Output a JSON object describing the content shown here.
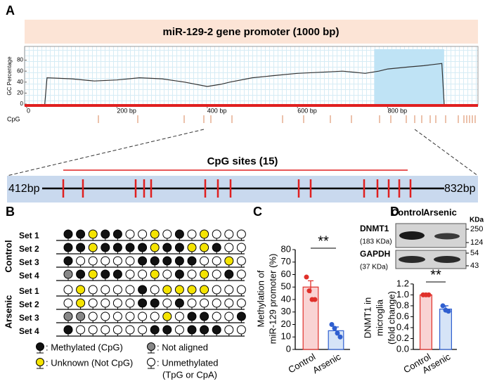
{
  "panel_labels": [
    "A",
    "B",
    "C",
    "D"
  ],
  "chart_data": [
    {
      "type": "line",
      "title": "miR-129-2 gene promoter (1000 bp)",
      "ylabel": "GC Percentage",
      "track_label": "CpG",
      "color": "#333333",
      "shade_color": "#bfe3f5",
      "x": [
        40,
        45,
        100,
        150,
        200,
        250,
        300,
        350,
        400,
        430,
        450,
        500,
        550,
        600,
        650,
        700,
        750,
        780,
        800,
        850,
        880,
        900,
        920,
        925
      ],
      "values": [
        0,
        48,
        46,
        42,
        44,
        48,
        46,
        40,
        32,
        36,
        40,
        48,
        52,
        56,
        58,
        60,
        56,
        60,
        64,
        68,
        70,
        72,
        74,
        0
      ],
      "shaded_region": [
        770,
        925
      ],
      "xlim": [
        0,
        1000
      ],
      "xticks": [
        0,
        {
          "value": 200,
          "label": "200 bp"
        },
        {
          "value": 400,
          "label": "400 bp"
        },
        {
          "value": 600,
          "label": "600 bp"
        },
        {
          "value": 800,
          "label": "800 bp"
        }
      ],
      "ylim": [
        0,
        100
      ],
      "yticks": [
        0,
        20,
        40,
        60,
        80
      ]
    },
    {
      "type": "bar",
      "ylabel": [
        "Methylation of",
        "miR-129 promoter (%)"
      ],
      "annotation": "**",
      "categories": [
        "Control",
        "Arsenic"
      ],
      "values": [
        50,
        15
      ],
      "errors": [
        5,
        3
      ],
      "points": [
        [
          58,
          47,
          40,
          40
        ],
        [
          20,
          17,
          13,
          10
        ]
      ],
      "colors": [
        "#f9d3d3",
        "#d6e4f7"
      ],
      "edge_colors": [
        "#e0302a",
        "#2f5fd0"
      ],
      "point_colors": [
        "#e0302a",
        "#2f5fd0"
      ],
      "ylim": [
        0,
        80
      ],
      "yticks": [
        0,
        10,
        20,
        30,
        40,
        50,
        60,
        70,
        80
      ]
    },
    {
      "type": "bar",
      "ylabel": [
        "DNMT1 in",
        "microglia",
        "(fold change)"
      ],
      "annotation": "**",
      "categories": [
        "Control",
        "Arsenic"
      ],
      "values": [
        1.0,
        0.74
      ],
      "errors": [
        0,
        0.06
      ],
      "points": [
        [
          1.0,
          1.0,
          1.0
        ],
        [
          0.8,
          0.72,
          0.7
        ]
      ],
      "colors": [
        "#f9d3d3",
        "#d6e4f7"
      ],
      "edge_colors": [
        "#e0302a",
        "#2f5fd0"
      ],
      "point_colors": [
        "#e0302a",
        "#2f5fd0"
      ],
      "ylim": [
        0,
        1.25
      ],
      "yticks": [
        {
          "value": 0,
          "label": "0.0"
        },
        {
          "value": 0.2,
          "label": "0.2"
        },
        {
          "value": 0.4,
          "label": "0.4"
        },
        {
          "value": 0.6,
          "label": "0.6"
        },
        {
          "value": 0.8,
          "label": "0.8"
        },
        {
          "value": 1.0,
          "label": "1.0"
        },
        {
          "value": 1.2,
          "label": "1.2"
        }
      ]
    }
  ],
  "cpg_zoom": {
    "title": "CpG sites (15)",
    "start_label": "412bp",
    "end_label": "832bp"
  },
  "methylation": {
    "groups": [
      {
        "name": "Control",
        "sets": [
          {
            "name": "Set 1",
            "colors": [
              "#111",
              "#111",
              "#f5e400",
              "#111",
              "#111",
              "#fff",
              "#fff",
              "#f5e400",
              "#fff",
              "#111",
              "#fff",
              "#f5e400",
              "#fff",
              "#fff",
              "#fff"
            ]
          },
          {
            "name": "Set 2",
            "colors": [
              "#111",
              "#111",
              "#f5e400",
              "#111",
              "#111",
              "#111",
              "#111",
              "#f5e400",
              "#111",
              "#111",
              "#f5e400",
              "#f5e400",
              "#111",
              "#fff",
              "#fff"
            ]
          },
          {
            "name": "Set 3",
            "colors": [
              "#111",
              "#fff",
              "#fff",
              "#fff",
              "#fff",
              "#fff",
              "#111",
              "#111",
              "#111",
              "#111",
              "#111",
              "#fff",
              "#fff",
              "#f5e400",
              "#fff"
            ]
          },
          {
            "name": "Set 4",
            "colors": [
              "#888",
              "#111",
              "#f5e400",
              "#111",
              "#111",
              "#fff",
              "#fff",
              "#f5e400",
              "#fff",
              "#111",
              "#fff",
              "#f5e400",
              "#fff",
              "#111",
              "#fff"
            ]
          }
        ]
      },
      {
        "name": "Arsenic",
        "sets": [
          {
            "name": "Set 1",
            "colors": [
              "#fff",
              "#f5e400",
              "#fff",
              "#fff",
              "#fff",
              "#fff",
              "#111",
              "#fff",
              "#f5e400",
              "#f5e400",
              "#f5e400",
              "#f5e400",
              "#fff",
              "#fff",
              "#fff"
            ]
          },
          {
            "name": "Set 2",
            "colors": [
              "#fff",
              "#f5e400",
              "#fff",
              "#fff",
              "#fff",
              "#fff",
              "#111",
              "#111",
              "#fff",
              "#111",
              "#fff",
              "#fff",
              "#fff",
              "#fff",
              "#fff"
            ]
          },
          {
            "name": "Set 3",
            "colors": [
              "#888",
              "#888",
              "#fff",
              "#fff",
              "#fff",
              "#fff",
              "#fff",
              "#fff",
              "#f5e400",
              "#fff",
              "#111",
              "#111",
              "#fff",
              "#fff",
              "#111"
            ]
          },
          {
            "name": "Set 4",
            "colors": [
              "#111",
              "#fff",
              "#fff",
              "#fff",
              "#fff",
              "#fff",
              "#fff",
              "#111",
              "#111",
              "#fff",
              "#111",
              "#111",
              "#111",
              "#fff",
              "#fff"
            ]
          }
        ]
      }
    ],
    "legend": [
      {
        "label": ": Methylated (CpG)",
        "color": "#111"
      },
      {
        "label": ": Unknown (Not CpG)",
        "color": "#f5e400"
      },
      {
        "label": ": Not aligned",
        "color": "#888"
      },
      {
        "label": ": Unmethylated",
        "note": "(TpG or CpA)",
        "color": "#fff"
      }
    ]
  },
  "blot": {
    "lanes": [
      "Control",
      "Arsenic"
    ],
    "proteins": [
      {
        "name": "DNMT1",
        "size": "(183 KDa)"
      },
      {
        "name": "GAPDH",
        "size": "(37 KDa)"
      }
    ],
    "marker_unit": "KDa",
    "markers": [
      "250",
      "124",
      "54",
      "43"
    ]
  }
}
